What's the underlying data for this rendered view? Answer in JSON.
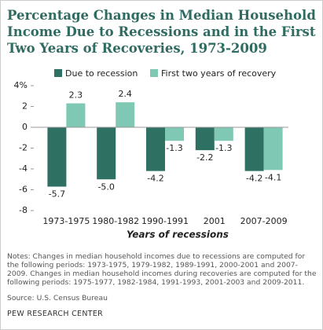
{
  "chart_data": {
    "type": "bar",
    "title": "Percentage Changes in Median Household Income Due to Recessions and in the First Two Years of Recoveries, 1973-2009",
    "categories": [
      "1973-1975",
      "1980-1982",
      "1990-1991",
      "2001",
      "2007-2009"
    ],
    "series": [
      {
        "name": "Due to recession",
        "color": "#2e7162",
        "values": [
          -5.7,
          -5.0,
          -4.2,
          -2.2,
          -4.2
        ],
        "value_labels": [
          "-5.7",
          "-5.0",
          "-4.2",
          "-2.2",
          "-4.2"
        ]
      },
      {
        "name": "First two years of recovery",
        "color": "#7ec8b4",
        "values": [
          2.3,
          2.4,
          -1.3,
          -1.3,
          -4.1
        ]
      }
    ],
    "ylim": [
      -8,
      4
    ],
    "yticks": [
      {
        "value": 4,
        "label": "4%"
      },
      2,
      0,
      -2,
      -4,
      -6,
      -8
    ],
    "grid": false,
    "x_label": "Years of recessions",
    "notes": "Notes: Changes in median household incomes due to recessions are computed for the following periods: 1973-1975, 1979-1982, 1989-1991, 2000-2001 and 2007-2009. Changes in median household incomes during recoveries are computed for the following periods: 1975-1977, 1982-1984, 1991-1993, 2001-2003 and 2009-2011.",
    "source": "Source: U.S. Census Bureau",
    "brand": "PEW RESEARCH CENTER"
  }
}
